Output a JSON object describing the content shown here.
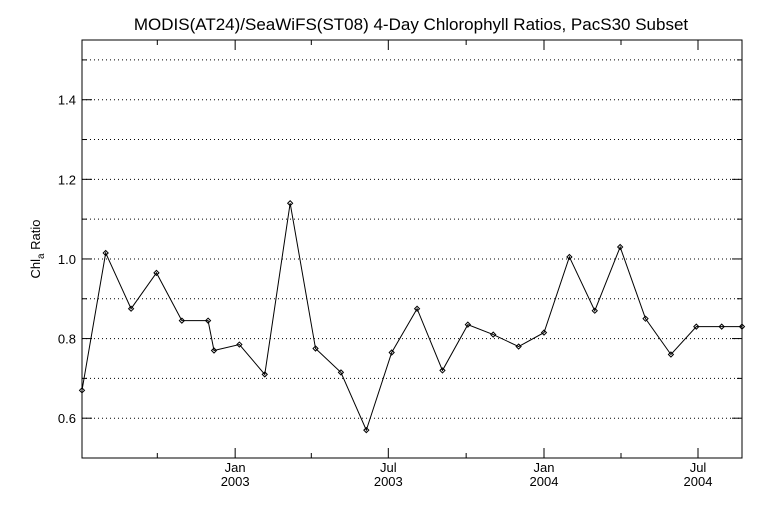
{
  "chart_data": {
    "type": "line",
    "title": "MODIS(AT24)/SeaWiFS(ST08) 4-Day Chlorophyll Ratios, PacS30 Subset",
    "ylabel": "Chl",
    "ylabel_subscript": "a",
    "ylabel_suffix": " Ratio",
    "ylim": [
      0.5,
      1.55
    ],
    "xlim": [
      "2002-07-04",
      "2004-08-22"
    ],
    "grid": "horizontal dotted",
    "y_ticks": [
      {
        "value": 0.6,
        "label": "0.6"
      },
      {
        "value": 0.8,
        "label": "0.8"
      },
      {
        "value": 1.0,
        "label": "1.0"
      },
      {
        "value": 1.2,
        "label": "1.2"
      },
      {
        "value": 1.4,
        "label": "1.4"
      }
    ],
    "y_minor_ticks": [
      0.7,
      0.9,
      1.1,
      1.3,
      1.5
    ],
    "x_ticks": [
      {
        "date": "2003-01-01",
        "month": "Jan",
        "year": "2003"
      },
      {
        "date": "2003-07-01",
        "month": "Jul",
        "year": "2003"
      },
      {
        "date": "2004-01-01",
        "month": "Jan",
        "year": "2004"
      },
      {
        "date": "2004-07-01",
        "month": "Jul",
        "year": "2004"
      }
    ],
    "x_minor_ticks": [
      "2002-10-01",
      "2003-04-01",
      "2003-10-01",
      "2004-04-01"
    ],
    "series": [
      {
        "marker": "diamond",
        "x": [
          "2002-07-04",
          "2002-08-01",
          "2002-08-31",
          "2002-09-30",
          "2002-10-30",
          "2002-11-30",
          "2002-12-07",
          "2003-01-06",
          "2003-02-05",
          "2003-03-07",
          "2003-04-06",
          "2003-05-06",
          "2003-06-05",
          "2003-07-05",
          "2003-08-04",
          "2003-09-03",
          "2003-10-03",
          "2003-11-02",
          "2003-12-02",
          "2004-01-01",
          "2004-01-31",
          "2004-03-01",
          "2004-03-31",
          "2004-04-30",
          "2004-05-30",
          "2004-06-29",
          "2004-07-29",
          "2004-08-22"
        ],
        "values": [
          0.67,
          1.015,
          0.875,
          0.965,
          0.845,
          0.845,
          0.77,
          0.785,
          0.71,
          1.14,
          0.775,
          0.715,
          0.57,
          0.765,
          0.875,
          0.72,
          0.835,
          0.81,
          0.78,
          0.815,
          1.005,
          0.87,
          1.03,
          0.85,
          0.76,
          0.83,
          0.83,
          0.83
        ]
      }
    ]
  }
}
